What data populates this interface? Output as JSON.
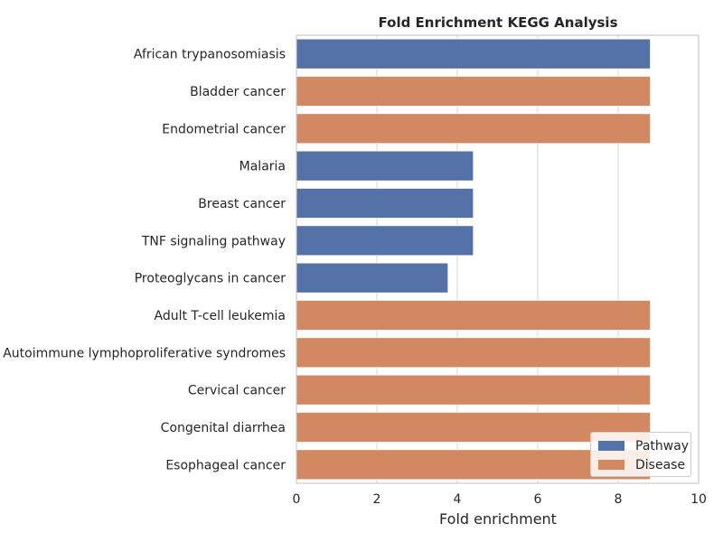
{
  "chart_data": {
    "type": "bar",
    "orientation": "horizontal",
    "title": "Fold Enrichment KEGG Analysis",
    "xlabel": "Fold enrichment",
    "ylabel": "",
    "xlim": [
      0,
      10
    ],
    "xticks": [
      0,
      2,
      4,
      6,
      8,
      10
    ],
    "grid": true,
    "legend_position": "bottom-right",
    "categories": [
      "African trypanosomiasis",
      "Bladder cancer",
      "Endometrial cancer",
      "Malaria",
      "Breast cancer",
      "TNF signaling pathway",
      "Proteoglycans in cancer",
      "Adult T-cell leukemia",
      "Autoimmune lymphoproliferative syndromes",
      "Cervical cancer",
      "Congenital diarrhea",
      "Esophageal cancer"
    ],
    "values": [
      8.8,
      8.8,
      8.8,
      4.4,
      4.4,
      4.4,
      3.77,
      8.8,
      8.8,
      8.8,
      8.8,
      8.8
    ],
    "groups": [
      "Pathway",
      "Disease",
      "Disease",
      "Pathway",
      "Pathway",
      "Pathway",
      "Pathway",
      "Disease",
      "Disease",
      "Disease",
      "Disease",
      "Disease"
    ],
    "legend": [
      {
        "name": "Pathway",
        "color": "#5572a8"
      },
      {
        "name": "Disease",
        "color": "#d28860"
      }
    ]
  }
}
